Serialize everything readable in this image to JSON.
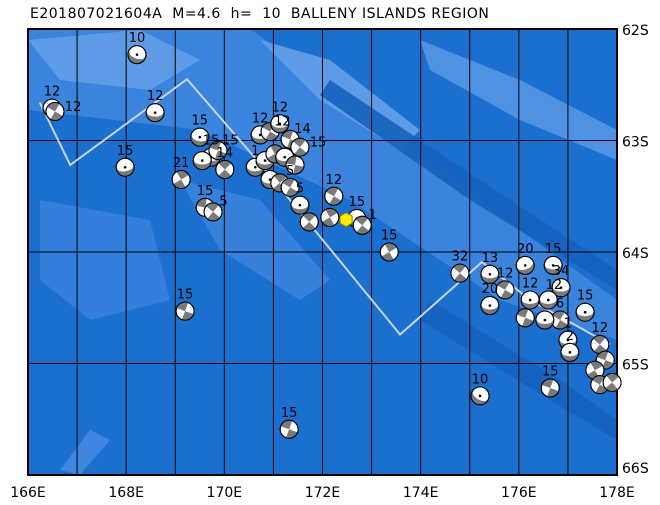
{
  "title": "E201807021604A  M=4.6  h=  10  BALLENY ISLANDS REGION",
  "map": {
    "lon_range": [
      166,
      178
    ],
    "lat_range": [
      62,
      66
    ],
    "hemisphere_lat": "S",
    "lon_labels": [
      "166E",
      "168E",
      "170E",
      "172E",
      "174E",
      "176E",
      "178E"
    ],
    "lat_labels": [
      "62S",
      "63S",
      "64S",
      "65S",
      "66S"
    ],
    "colors": {
      "ocean_deep": "#1a6fcf",
      "ocean_mid": "#3e86df",
      "ocean_shallow": "#5d9be6",
      "trough": "#1562bd",
      "plate_boundary": "#c8d4f0",
      "compression": "#7a7a7a",
      "dilatation": "#ffffff",
      "current_event": "#ffee00"
    },
    "plate_boundary": [
      [
        166.24,
        62.66
      ],
      [
        166.86,
        63.22
      ],
      [
        169.24,
        62.45
      ],
      [
        170.83,
        63.26
      ],
      [
        173.58,
        64.74
      ],
      [
        175.25,
        64.09
      ],
      [
        176.23,
        64.43
      ],
      [
        177.86,
        64.83
      ]
    ],
    "current_event": {
      "lon": 172.48,
      "lat": 63.71,
      "depth": "10",
      "magnitude": "4.6"
    },
    "events": [
      {
        "lon": 168.22,
        "lat": 62.23,
        "depth": "10",
        "type": "dip",
        "rot": 20
      },
      {
        "lon": 166.49,
        "lat": 62.71,
        "depth": "12",
        "type": "dip",
        "rot": 0
      },
      {
        "lon": 166.55,
        "lat": 62.74,
        "depth": "12",
        "type": "ss",
        "rot": 30
      },
      {
        "lon": 168.59,
        "lat": 62.75,
        "depth": "12",
        "type": "dip",
        "rot": 0
      },
      {
        "lon": 167.98,
        "lat": 63.24,
        "depth": "15",
        "type": "dip",
        "rot": -10
      },
      {
        "lon": 169.5,
        "lat": 62.97,
        "depth": "15",
        "type": "dip",
        "rot": 10
      },
      {
        "lon": 169.12,
        "lat": 63.35,
        "depth": "21",
        "type": "ss",
        "rot": 60
      },
      {
        "lon": 169.61,
        "lat": 63.6,
        "depth": "15",
        "type": "ss",
        "rot": 10
      },
      {
        "lon": 169.77,
        "lat": 63.64,
        "depth": "5",
        "type": "ss",
        "rot": 40
      },
      {
        "lon": 169.73,
        "lat": 63.15,
        "depth": "15",
        "type": "dip",
        "rot": 0
      },
      {
        "lon": 169.87,
        "lat": 63.09,
        "depth": "15",
        "type": "ss",
        "rot": 20
      },
      {
        "lon": 170.01,
        "lat": 63.26,
        "depth": "14",
        "type": "ss",
        "rot": 45
      },
      {
        "lon": 169.55,
        "lat": 63.18,
        "depth": "",
        "type": "dip",
        "rot": 0
      },
      {
        "lon": 170.73,
        "lat": 62.95,
        "depth": "12",
        "type": "dip",
        "rot": 0
      },
      {
        "lon": 170.93,
        "lat": 62.92,
        "depth": "12",
        "type": "ss",
        "rot": 30
      },
      {
        "lon": 171.13,
        "lat": 62.85,
        "depth": "12",
        "type": "dip",
        "rot": 0
      },
      {
        "lon": 171.34,
        "lat": 62.99,
        "depth": "14",
        "type": "ss",
        "rot": 20
      },
      {
        "lon": 171.54,
        "lat": 63.06,
        "depth": "15",
        "type": "ss",
        "rot": 40
      },
      {
        "lon": 170.63,
        "lat": 63.24,
        "depth": "1",
        "type": "dip",
        "rot": 0
      },
      {
        "lon": 170.83,
        "lat": 63.18,
        "depth": "",
        "type": "dip",
        "rot": 0
      },
      {
        "lon": 171.03,
        "lat": 63.12,
        "depth": "",
        "type": "ss",
        "rot": 60
      },
      {
        "lon": 171.23,
        "lat": 63.15,
        "depth": "",
        "type": "dip",
        "rot": 0
      },
      {
        "lon": 171.44,
        "lat": 63.22,
        "depth": "",
        "type": "ss",
        "rot": 10
      },
      {
        "lon": 170.93,
        "lat": 63.35,
        "depth": "",
        "type": "dip",
        "rot": 0
      },
      {
        "lon": 171.13,
        "lat": 63.38,
        "depth": "",
        "type": "ss",
        "rot": 50
      },
      {
        "lon": 171.34,
        "lat": 63.42,
        "depth": "5",
        "type": "ss",
        "rot": 30
      },
      {
        "lon": 171.54,
        "lat": 63.58,
        "depth": "5",
        "type": "dip",
        "rot": 0
      },
      {
        "lon": 171.73,
        "lat": 63.73,
        "depth": "",
        "type": "ss",
        "rot": 45
      },
      {
        "lon": 172.23,
        "lat": 63.5,
        "depth": "12",
        "type": "ss",
        "rot": 30
      },
      {
        "lon": 172.15,
        "lat": 63.69,
        "depth": "",
        "type": "ss",
        "rot": 60
      },
      {
        "lon": 172.7,
        "lat": 63.7,
        "depth": "15",
        "type": "dip",
        "rot": 0
      },
      {
        "lon": 172.81,
        "lat": 63.76,
        "depth": "1",
        "type": "ss",
        "rot": 40
      },
      {
        "lon": 173.36,
        "lat": 64.0,
        "depth": "15",
        "type": "ss",
        "rot": 60
      },
      {
        "lon": 169.2,
        "lat": 64.53,
        "depth": "15",
        "type": "ss",
        "rot": 20
      },
      {
        "lon": 171.32,
        "lat": 65.59,
        "depth": "15",
        "type": "ss",
        "rot": 20
      },
      {
        "lon": 174.8,
        "lat": 64.19,
        "depth": "32",
        "type": "ss",
        "rot": 40
      },
      {
        "lon": 175.41,
        "lat": 64.2,
        "depth": "13",
        "type": "dip",
        "rot": 0
      },
      {
        "lon": 175.72,
        "lat": 64.34,
        "depth": "12",
        "type": "ss",
        "rot": 30
      },
      {
        "lon": 175.41,
        "lat": 64.48,
        "depth": "20",
        "type": "dip",
        "rot": 0
      },
      {
        "lon": 176.13,
        "lat": 64.12,
        "depth": "20",
        "type": "dip",
        "rot": -20
      },
      {
        "lon": 176.7,
        "lat": 64.12,
        "depth": "15",
        "type": "dip",
        "rot": 0
      },
      {
        "lon": 176.86,
        "lat": 64.32,
        "depth": "34",
        "type": "dip",
        "rot": 0
      },
      {
        "lon": 176.23,
        "lat": 64.43,
        "depth": "12",
        "type": "dip",
        "rot": 0
      },
      {
        "lon": 176.6,
        "lat": 64.43,
        "depth": "12",
        "type": "dip",
        "rot": 0
      },
      {
        "lon": 176.84,
        "lat": 64.61,
        "depth": "6",
        "type": "ss",
        "rot": 30
      },
      {
        "lon": 176.13,
        "lat": 64.59,
        "depth": "",
        "type": "ss",
        "rot": 20
      },
      {
        "lon": 176.53,
        "lat": 64.61,
        "depth": "",
        "type": "dip",
        "rot": 0
      },
      {
        "lon": 177.35,
        "lat": 64.54,
        "depth": "15",
        "type": "dip",
        "rot": 0
      },
      {
        "lon": 177.0,
        "lat": 64.79,
        "depth": "1",
        "type": "dip",
        "rot": 0
      },
      {
        "lon": 177.04,
        "lat": 64.9,
        "depth": "2",
        "type": "dip",
        "rot": 0
      },
      {
        "lon": 177.65,
        "lat": 64.83,
        "depth": "12",
        "type": "ss",
        "rot": 40
      },
      {
        "lon": 177.76,
        "lat": 64.97,
        "depth": "",
        "type": "ss",
        "rot": 20
      },
      {
        "lon": 177.55,
        "lat": 65.06,
        "depth": "",
        "type": "ss",
        "rot": 60
      },
      {
        "lon": 177.65,
        "lat": 65.19,
        "depth": "",
        "type": "ss",
        "rot": 30
      },
      {
        "lon": 177.9,
        "lat": 65.17,
        "depth": "",
        "type": "ss",
        "rot": 50
      },
      {
        "lon": 175.21,
        "lat": 65.29,
        "depth": "10",
        "type": "dip",
        "rot": 30
      },
      {
        "lon": 176.64,
        "lat": 65.22,
        "depth": "15",
        "type": "ss",
        "rot": 20
      }
    ]
  }
}
